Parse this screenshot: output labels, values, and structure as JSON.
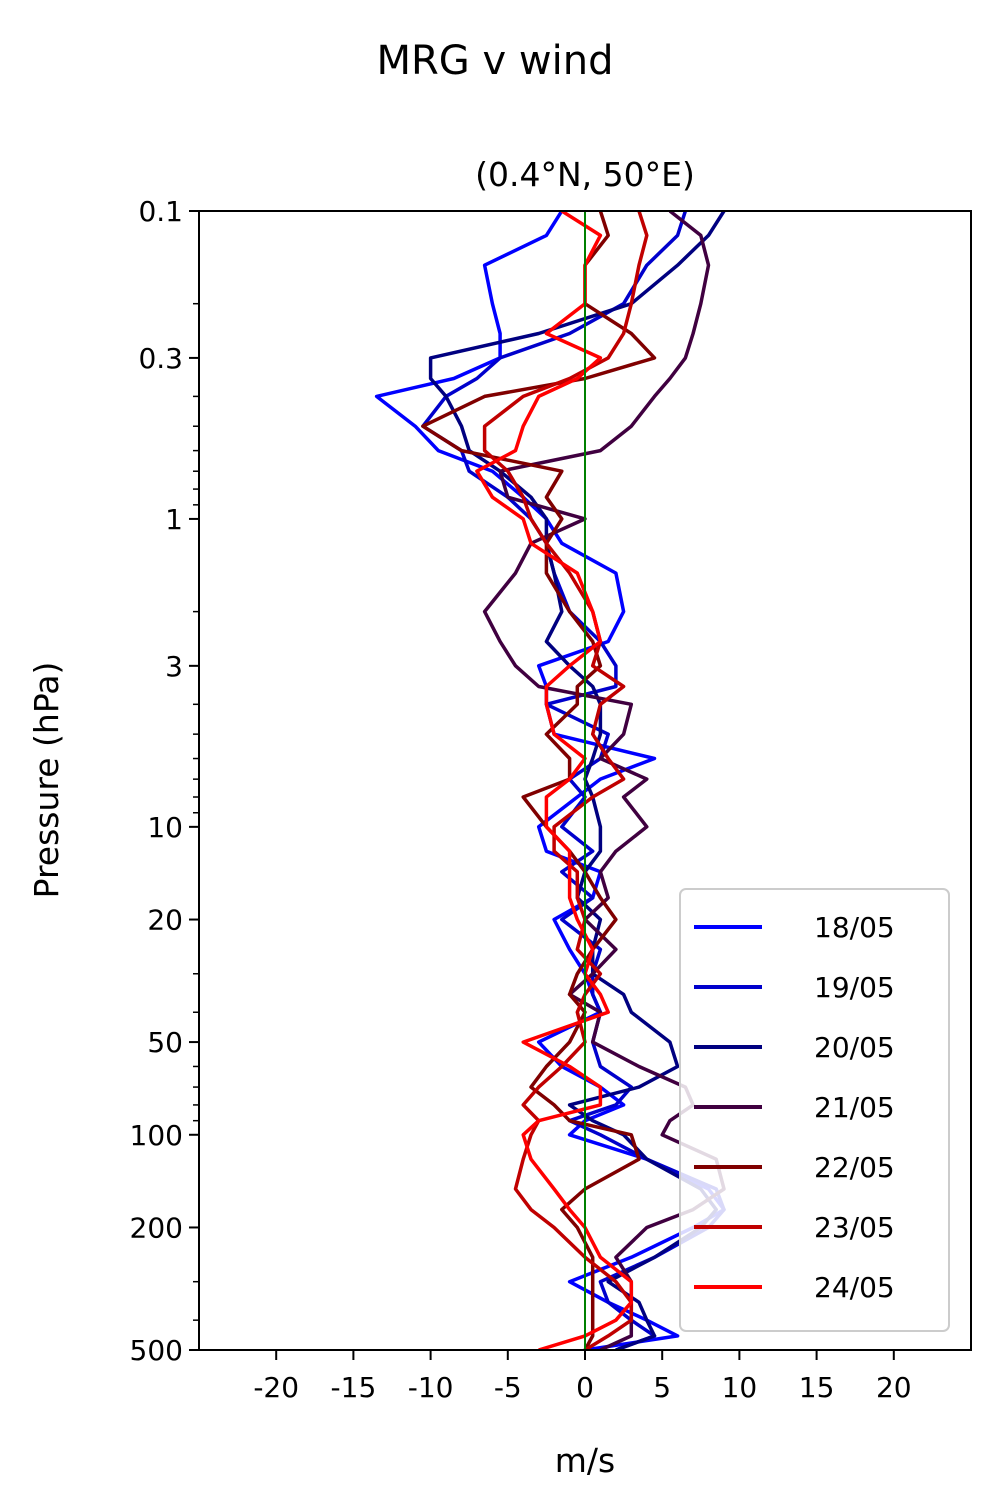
{
  "chart_data": {
    "type": "line",
    "title": "MRG v wind",
    "subtitle": "(0.4°N, 50°E)",
    "xlabel": "m/s",
    "ylabel": "Pressure (hPa)",
    "xlim": [
      -25,
      25
    ],
    "ylim": [
      500,
      0.1
    ],
    "yscale": "log",
    "y_inverted": true,
    "xticks": [
      -20,
      -15,
      -10,
      -5,
      0,
      5,
      10,
      15,
      20
    ],
    "xtick_labels": [
      "-20",
      "-15",
      "-10",
      "-5",
      "0",
      "5",
      "10",
      "15",
      "20"
    ],
    "yticks": [
      0.1,
      0.3,
      1,
      3,
      10,
      20,
      50,
      100,
      200,
      500
    ],
    "ytick_labels": [
      "0.1",
      "0.3",
      "1",
      "3",
      "10",
      "20",
      "50",
      "100",
      "200",
      "500"
    ],
    "grid": false,
    "legend_position": "lower-right",
    "zero_line": {
      "x": 0,
      "color": "#008000"
    },
    "pressure_levels": [
      0.1,
      0.12,
      0.15,
      0.2,
      0.25,
      0.3,
      0.35,
      0.4,
      0.5,
      0.6,
      0.7,
      0.85,
      1,
      1.2,
      1.5,
      2,
      2.5,
      3,
      3.5,
      4,
      5,
      6,
      7,
      8,
      10,
      12,
      14,
      17,
      20,
      25,
      30,
      35,
      40,
      50,
      60,
      70,
      80,
      90,
      100,
      120,
      150,
      175,
      200,
      250,
      300,
      350,
      400,
      450,
      500
    ],
    "series": [
      {
        "name": "18/05",
        "color": "#0000ff",
        "values": [
          -1.5,
          -2.5,
          -6.5,
          -6,
          -5.5,
          -5.5,
          -8.5,
          -13.5,
          -11,
          -9.5,
          -6,
          -4,
          -2.5,
          -1.5,
          2,
          2.5,
          1.5,
          -3,
          -2.5,
          -2.5,
          -2,
          4.5,
          1,
          -0.5,
          -3,
          -2.5,
          1,
          0.5,
          -2,
          -1,
          0,
          0.5,
          1,
          -3,
          -1.5,
          1,
          2.5,
          0,
          -1,
          4,
          8,
          9,
          7,
          3,
          -1,
          1.5,
          4,
          6,
          0
        ]
      },
      {
        "name": "19/05",
        "color": "#0000cc",
        "values": [
          6.5,
          6,
          4,
          2.5,
          -1,
          -5.5,
          -7,
          -9,
          -10.5,
          -8,
          -7.5,
          -5,
          -3.5,
          -2.5,
          -2,
          -1,
          1,
          2,
          2,
          -2.5,
          1.5,
          1,
          -1,
          0,
          -1.5,
          0.5,
          -1.5,
          0.5,
          -1.5,
          1,
          0.5,
          0.5,
          1,
          0.5,
          1,
          3,
          2,
          -1,
          1,
          4,
          8.5,
          9,
          8,
          4.5,
          1,
          1.5,
          3,
          4.5,
          2
        ]
      },
      {
        "name": "20/05",
        "color": "#000080",
        "values": [
          9,
          8,
          6,
          3,
          -3,
          -10,
          -10,
          -9,
          -8,
          -7.5,
          -5.5,
          -3.5,
          -2.5,
          -2.5,
          -2,
          -1.5,
          -2.5,
          -1,
          0.5,
          1,
          1,
          0.5,
          0,
          0.5,
          1,
          1,
          0,
          -0.5,
          1,
          0.5,
          0.5,
          2.5,
          3,
          5.5,
          6,
          3.5,
          -1,
          0.5,
          2.5,
          4,
          7.5,
          8.5,
          7.5,
          4.5,
          1.5,
          3.5,
          4,
          4.5,
          2
        ]
      },
      {
        "name": "21/05",
        "color": "#400040",
        "values": [
          5.5,
          7.5,
          8,
          7.5,
          7,
          6.5,
          5.5,
          4.5,
          3,
          1,
          -5.5,
          -5,
          0,
          -3.5,
          -4.5,
          -6.5,
          -5.5,
          -4.5,
          -3,
          3,
          2.5,
          1,
          4,
          2.5,
          4,
          2,
          1,
          1.5,
          0,
          2,
          0.5,
          -1,
          1,
          0.5,
          3.5,
          6.5,
          7,
          5.5,
          5,
          8.5,
          9,
          7,
          4,
          2,
          3,
          3,
          3,
          3,
          1
        ]
      },
      {
        "name": "22/05",
        "color": "#800000",
        "values": [
          1,
          1.5,
          0,
          0,
          3,
          4.5,
          0,
          -6.5,
          -10.5,
          -8,
          -1.5,
          -2.5,
          -1.5,
          -2.5,
          -2.5,
          -1,
          0.5,
          1,
          -0.5,
          -0.5,
          -2.5,
          -1,
          -1,
          -4,
          -2.5,
          -1,
          0,
          1,
          2,
          0.5,
          -0.5,
          -1,
          0,
          -1,
          -2.5,
          -3.5,
          -2,
          -1,
          3,
          3.5,
          0,
          -1.5,
          -0.5,
          0.5,
          0.5,
          0.5,
          0.5,
          0.5,
          0
        ]
      },
      {
        "name": "23/05",
        "color": "#c00000",
        "values": [
          3.5,
          4,
          3.5,
          3,
          2.5,
          1.5,
          -1,
          -4,
          -6.5,
          -6.5,
          -5,
          -4,
          -3.5,
          -2.5,
          -1,
          0.5,
          1,
          0.5,
          2.5,
          1,
          0.5,
          1.5,
          2.5,
          0.5,
          -2,
          -2,
          -0.5,
          -0.5,
          0,
          -0.5,
          1,
          0,
          -0.5,
          0,
          -1.5,
          -3,
          -4,
          -3,
          -3.5,
          -4,
          -4.5,
          -3.5,
          -2,
          0,
          2,
          3,
          3,
          1.5,
          0
        ]
      },
      {
        "name": "24/05",
        "color": "#ff0000",
        "values": [
          -1.5,
          1,
          0,
          0,
          -2.5,
          1,
          -0.5,
          -3,
          -4,
          -4.5,
          -7,
          -6,
          -4,
          -3.5,
          -0.5,
          0.5,
          1,
          -1,
          -2.5,
          -2.5,
          -2,
          0,
          -1,
          -2.5,
          -2.5,
          -1,
          -1,
          -1,
          -0.5,
          0.5,
          0,
          1,
          1.5,
          -4,
          -1,
          1,
          1,
          -3,
          -4,
          -3.5,
          -2,
          -1,
          0,
          1,
          3,
          3,
          2,
          0,
          -3
        ]
      }
    ]
  }
}
